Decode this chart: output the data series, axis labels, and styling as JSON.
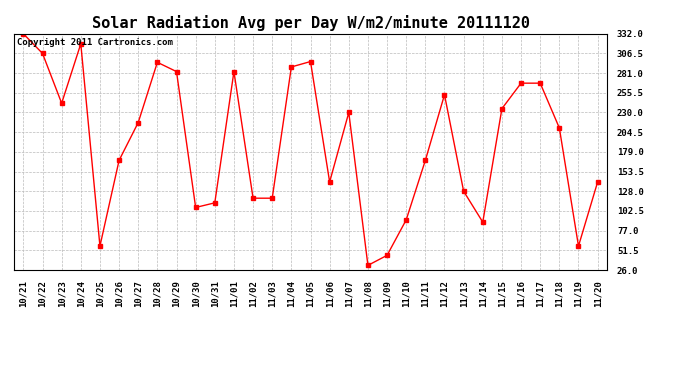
{
  "title": "Solar Radiation Avg per Day W/m2/minute 20111120",
  "copyright_text": "Copyright 2011 Cartronics.com",
  "labels": [
    "10/21",
    "10/22",
    "10/23",
    "10/24",
    "10/25",
    "10/26",
    "10/27",
    "10/28",
    "10/29",
    "10/30",
    "10/31",
    "11/01",
    "11/02",
    "11/03",
    "11/04",
    "11/05",
    "11/06",
    "11/07",
    "11/08",
    "11/09",
    "11/10",
    "11/11",
    "11/12",
    "11/13",
    "11/14",
    "11/15",
    "11/16",
    "11/17",
    "11/18",
    "11/19",
    "11/20"
  ],
  "values": [
    332.0,
    306.5,
    242.0,
    319.0,
    57.0,
    168.0,
    217.0,
    295.0,
    283.0,
    107.0,
    113.0,
    283.0,
    119.0,
    119.0,
    289.0,
    296.0,
    140.0,
    230.0,
    32.0,
    45.0,
    91.0,
    168.0,
    253.0,
    128.0,
    88.0,
    235.0,
    268.0,
    268.0,
    210.0,
    57.0,
    140.0
  ],
  "ylim": [
    26.0,
    332.0
  ],
  "yticks": [
    26.0,
    51.5,
    77.0,
    102.5,
    128.0,
    153.5,
    179.0,
    204.5,
    230.0,
    255.5,
    281.0,
    306.5,
    332.0
  ],
  "line_color": "#ff0000",
  "marker": "s",
  "marker_size": 2.5,
  "bg_color": "#ffffff",
  "plot_bg_color": "#ffffff",
  "grid_color": "#bbbbbb",
  "title_fontsize": 11,
  "tick_fontsize": 6.5,
  "copyright_fontsize": 6.5
}
